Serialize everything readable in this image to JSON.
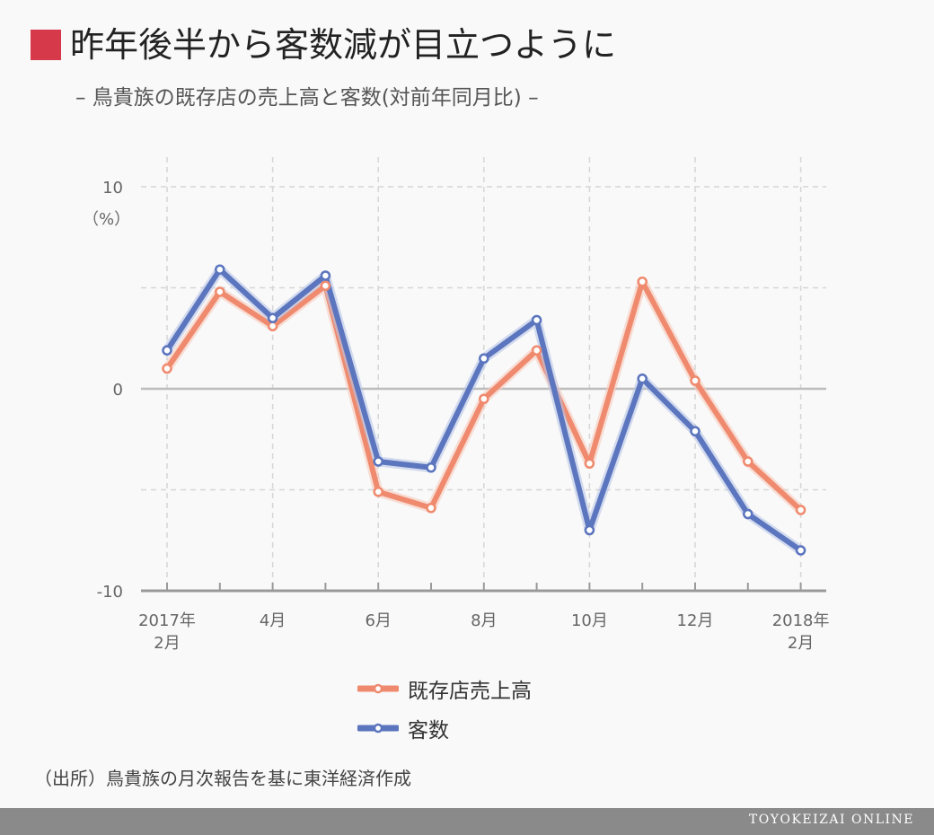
{
  "header": {
    "title": "昨年後半から客数減が目立つように",
    "subtitle": "– 鳥貴族の既存店の売上高と客数(対前年同月比) –",
    "square_color": "#d6394a"
  },
  "chart_data": {
    "type": "line",
    "ylim": [
      -10,
      10
    ],
    "yticks": [
      {
        "value": 10,
        "label": "10"
      },
      {
        "value": 0,
        "label": "0"
      },
      {
        "value": -10,
        "label": "-10"
      }
    ],
    "gridlines_y": [
      10,
      5,
      -5
    ],
    "yunit": "（%）",
    "grid": true,
    "x": [
      "2017年2月",
      "2017年3月",
      "2017年4月",
      "2017年5月",
      "2017年6月",
      "2017年7月",
      "2017年8月",
      "2017年9月",
      "2017年10月",
      "2017年11月",
      "2017年12月",
      "2018年1月",
      "2018年2月"
    ],
    "xtick_labels": [
      {
        "index": 0,
        "lines": [
          "2017年",
          "2月"
        ]
      },
      {
        "index": 2,
        "lines": [
          "4月"
        ]
      },
      {
        "index": 4,
        "lines": [
          "6月"
        ]
      },
      {
        "index": 6,
        "lines": [
          "8月"
        ]
      },
      {
        "index": 8,
        "lines": [
          "10月"
        ]
      },
      {
        "index": 10,
        "lines": [
          "12月"
        ]
      },
      {
        "index": 12,
        "lines": [
          "2018年",
          "2月"
        ]
      }
    ],
    "series": [
      {
        "name": "既存店売上高",
        "color": "#ef8a6e",
        "values": [
          1.0,
          4.8,
          3.1,
          5.1,
          -5.1,
          -5.9,
          -0.5,
          1.9,
          -3.7,
          5.3,
          0.4,
          -3.6,
          -6.0
        ]
      },
      {
        "name": "客数",
        "color": "#5b75be",
        "values": [
          1.9,
          5.9,
          3.5,
          5.6,
          -3.6,
          -3.9,
          1.5,
          3.4,
          -7.0,
          0.5,
          -2.1,
          -6.2,
          -8.0
        ]
      }
    ],
    "legend_position": "bottom-center"
  },
  "source": "（出所）鳥貴族の月次報告を基に東洋経済作成",
  "footer": {
    "brand": "TOYOKEIZAI ONLINE"
  }
}
